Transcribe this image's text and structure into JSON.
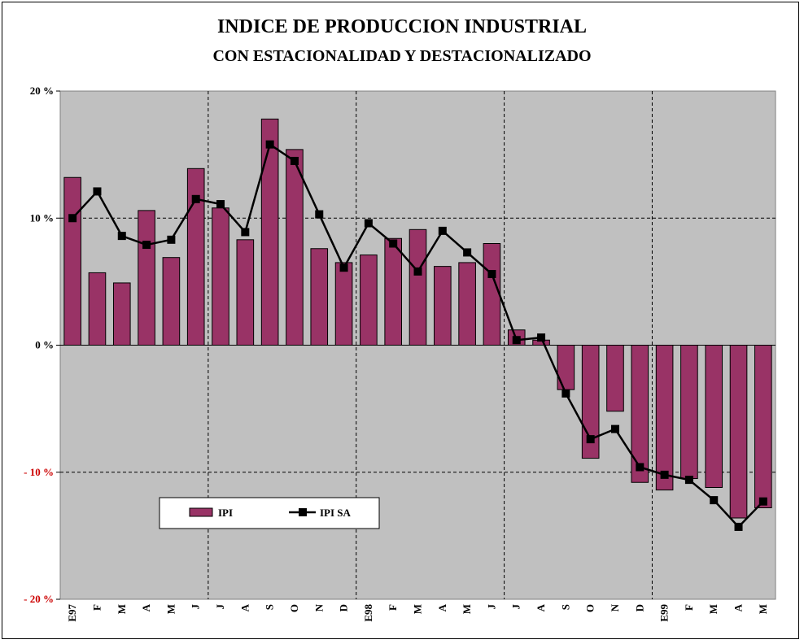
{
  "chart_data": {
    "type": "bar",
    "title": "INDICE DE PRODUCCION INDUSTRIAL",
    "subtitle": "CON ESTACIONALIDAD Y DESTACIONALIZADO",
    "categories": [
      "E97",
      "F",
      "M",
      "A",
      "M",
      "J",
      "J",
      "A",
      "S",
      "O",
      "N",
      "D",
      "E98",
      "F",
      "M",
      "A",
      "M",
      "J",
      "J",
      "A",
      "S",
      "O",
      "N",
      "D",
      "E99",
      "F",
      "M",
      "A",
      "M"
    ],
    "series": [
      {
        "name": "IPI",
        "type": "bar",
        "color": "#993366",
        "values": [
          13.2,
          5.7,
          4.9,
          10.6,
          6.9,
          13.9,
          10.8,
          8.3,
          17.8,
          15.4,
          7.6,
          6.5,
          7.1,
          8.4,
          9.1,
          6.2,
          6.5,
          8.0,
          1.2,
          0.4,
          -3.5,
          -8.9,
          -5.2,
          -10.8,
          -11.4,
          -10.5,
          -11.2,
          -13.6,
          -12.8
        ]
      },
      {
        "name": "IPI SA",
        "type": "line",
        "color": "#000000",
        "values": [
          10.0,
          12.1,
          8.6,
          7.9,
          8.3,
          11.5,
          11.1,
          8.9,
          15.8,
          14.5,
          10.3,
          6.1,
          9.6,
          8.0,
          5.8,
          9.0,
          7.3,
          5.6,
          0.4,
          0.6,
          -3.8,
          -7.4,
          -6.6,
          -9.6,
          -10.2,
          -10.6,
          -12.2,
          -14.3,
          -12.3
        ]
      }
    ],
    "yticks": [
      {
        "value": 20,
        "label": "20 %",
        "color": "#000000"
      },
      {
        "value": 10,
        "label": "10 %",
        "color": "#000000"
      },
      {
        "value": 0,
        "label": "0 %",
        "color": "#000000"
      },
      {
        "value": -10,
        "label": "- 10 %",
        "color": "#cc0000"
      },
      {
        "value": -20,
        "label": "- 20 %",
        "color": "#cc0000"
      }
    ],
    "ylim": [
      -20,
      20
    ],
    "year_dividers_after": [
      5,
      11,
      17,
      23
    ],
    "grid": true,
    "plot_background": "#c0c0c0",
    "legend_position": "lower-left"
  }
}
